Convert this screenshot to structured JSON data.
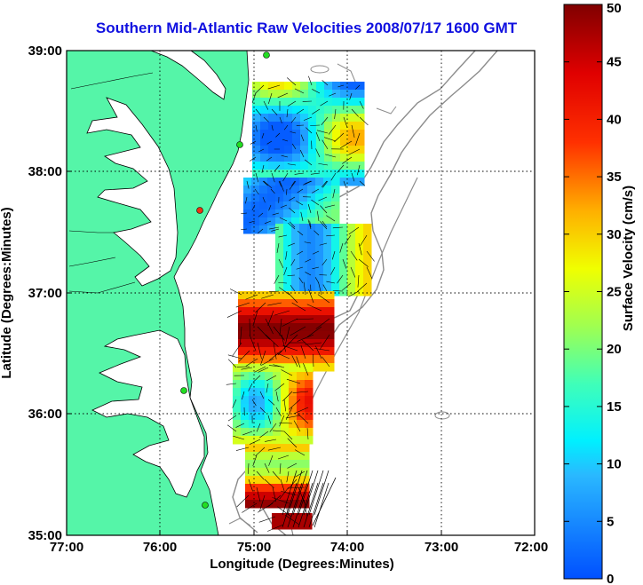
{
  "title": "Southern Mid-Atlantic Raw Velocities 2008/07/17 1600 GMT",
  "x_axis": {
    "label": "Longitude (Degrees:Minutes)",
    "ticks": [
      "77:00",
      "76:00",
      "75:00",
      "74:00",
      "73:00",
      "72:00"
    ]
  },
  "y_axis": {
    "label": "Latitude (Degrees:Minutes)",
    "ticks": [
      "39:00",
      "38:00",
      "37:00",
      "36:00",
      "35:00"
    ]
  },
  "colorbar": {
    "label": "Surface Velocity (cm/s)",
    "ticks": [
      "0",
      "5",
      "10",
      "15",
      "20",
      "25",
      "30",
      "35",
      "40",
      "45",
      "50"
    ],
    "min": 0,
    "max": 50
  },
  "colors": {
    "title": "#1010e0",
    "land": "#55f5a8",
    "coast_line": "#000000",
    "bathymetry": "#8c8c8c",
    "station": "#22dd22",
    "station_alt": "#ee3311"
  }
}
